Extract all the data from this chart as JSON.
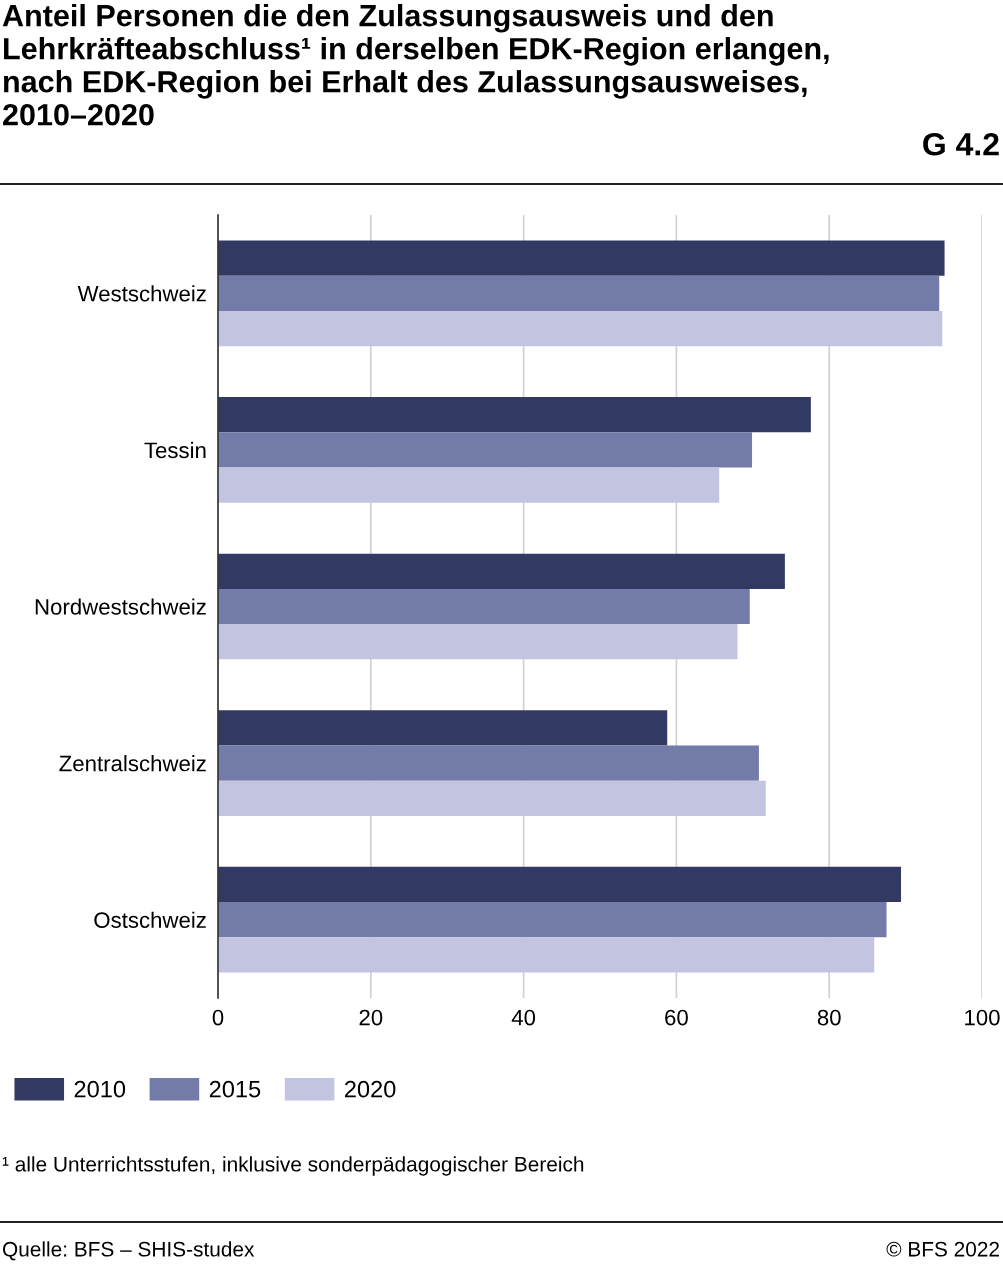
{
  "chart_data": {
    "type": "bar",
    "orientation": "horizontal",
    "title": "Anteil Personen die den Zulassungsausweis und den Lehrkräfteabschluss¹ in derselben EDK-Region erlangen, nach EDK-Region bei Erhalt des Zulassungsausweises, 2010–2020",
    "subtitle": "G 4.2",
    "categories": [
      "Westschweiz",
      "Tessin",
      "Nordwestschweiz",
      "Zentralschweiz",
      "Ostschweiz"
    ],
    "series": [
      {
        "name": "2010",
        "color": "#323a64",
        "values": [
          95.1,
          77.6,
          74.2,
          58.8,
          89.4
        ]
      },
      {
        "name": "2015",
        "color": "#737ba8",
        "values": [
          94.4,
          69.9,
          69.6,
          70.8,
          87.5
        ]
      },
      {
        "name": "2020",
        "color": "#c3c5e0",
        "values": [
          94.8,
          65.6,
          68.0,
          71.7,
          85.9
        ]
      }
    ],
    "xlim": [
      0,
      100
    ],
    "xticks": [
      0,
      20,
      40,
      60,
      80,
      100
    ],
    "grid": "x",
    "legend": "bottom",
    "annotations": [
      "¹ alle Unterrichtsstufen, inklusive sonderpädagogischer Bereich",
      "Quelle: BFS – SHIS-studex",
      "© BFS 2022"
    ]
  }
}
